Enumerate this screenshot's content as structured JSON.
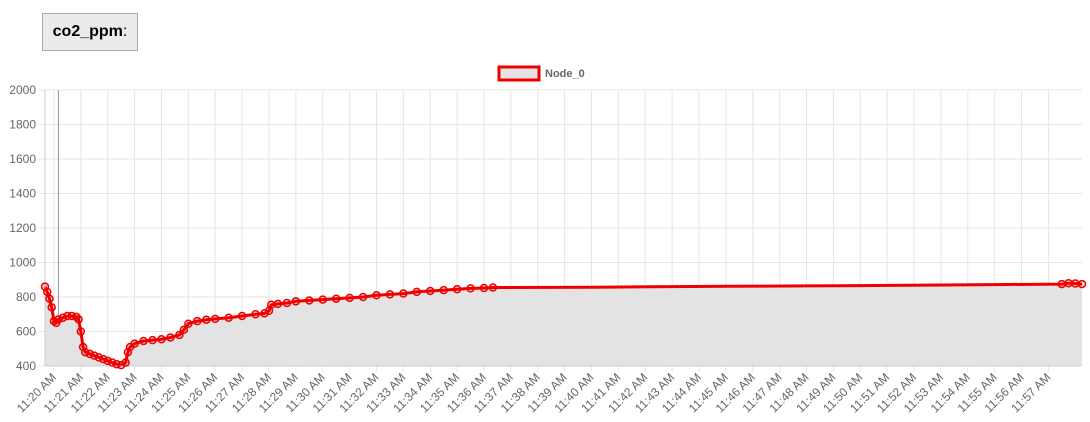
{
  "header": {
    "metric": "co2_ppm",
    "colon": ":"
  },
  "colors": {
    "line": "#ee0000",
    "fill": "#e3e3e3",
    "grid": "#e6e6e6",
    "text": "#666666"
  },
  "chart_data": {
    "type": "area",
    "title": "",
    "xlabel": "",
    "ylabel": "",
    "ylim": [
      400,
      2000
    ],
    "yticks": [
      400,
      600,
      800,
      1000,
      1200,
      1400,
      1600,
      1800,
      2000
    ],
    "legend": {
      "placement": "top-center",
      "entries": [
        "Node_0"
      ]
    },
    "grid": true,
    "x_tick_labels": [
      "11:20 AM",
      "11:21 AM",
      "11:22 AM",
      "11:23 AM",
      "11:24 AM",
      "11:25 AM",
      "11:26 AM",
      "11:27 AM",
      "11:28 AM",
      "11:29 AM",
      "11:30 AM",
      "11:31 AM",
      "11:32 AM",
      "11:33 AM",
      "11:34 AM",
      "11:35 AM",
      "11:36 AM",
      "11:37 AM",
      "11:38 AM",
      "11:39 AM",
      "11:40 AM",
      "11:41 AM",
      "11:42 AM",
      "11:43 AM",
      "11:44 AM",
      "11:45 AM",
      "11:46 AM",
      "11:47 AM",
      "11:48 AM",
      "11:49 AM",
      "11:50 AM",
      "11:51 AM",
      "11:52 AM",
      "11:53 AM",
      "11:54 AM",
      "11:55 AM",
      "11:56 AM",
      "11:57 AM"
    ],
    "x_range": [
      "11:19:40 AM",
      "11:58:15 AM"
    ],
    "series": [
      {
        "name": "Node_0",
        "points": [
          {
            "x": "11:19:40",
            "y": 860
          },
          {
            "x": "11:19:45",
            "y": 830
          },
          {
            "x": "11:19:50",
            "y": 790
          },
          {
            "x": "11:19:55",
            "y": 740
          },
          {
            "x": "11:20:00",
            "y": 660
          },
          {
            "x": "11:20:05",
            "y": 650
          },
          {
            "x": "11:20:10",
            "y": 670
          },
          {
            "x": "11:20:20",
            "y": 680
          },
          {
            "x": "11:20:30",
            "y": 690
          },
          {
            "x": "11:20:40",
            "y": 690
          },
          {
            "x": "11:20:50",
            "y": 685
          },
          {
            "x": "11:20:55",
            "y": 670
          },
          {
            "x": "11:21:00",
            "y": 600
          },
          {
            "x": "11:21:05",
            "y": 510
          },
          {
            "x": "11:21:10",
            "y": 480
          },
          {
            "x": "11:21:20",
            "y": 470
          },
          {
            "x": "11:21:30",
            "y": 460
          },
          {
            "x": "11:21:40",
            "y": 450
          },
          {
            "x": "11:21:50",
            "y": 440
          },
          {
            "x": "11:22:00",
            "y": 430
          },
          {
            "x": "11:22:10",
            "y": 420
          },
          {
            "x": "11:22:20",
            "y": 410
          },
          {
            "x": "11:22:30",
            "y": 405
          },
          {
            "x": "11:22:40",
            "y": 420
          },
          {
            "x": "11:22:45",
            "y": 480
          },
          {
            "x": "11:22:50",
            "y": 510
          },
          {
            "x": "11:23:00",
            "y": 530
          },
          {
            "x": "11:23:20",
            "y": 545
          },
          {
            "x": "11:23:40",
            "y": 550
          },
          {
            "x": "11:24:00",
            "y": 555
          },
          {
            "x": "11:24:20",
            "y": 565
          },
          {
            "x": "11:24:40",
            "y": 580
          },
          {
            "x": "11:24:50",
            "y": 610
          },
          {
            "x": "11:25:00",
            "y": 645
          },
          {
            "x": "11:25:20",
            "y": 660
          },
          {
            "x": "11:25:40",
            "y": 668
          },
          {
            "x": "11:26:00",
            "y": 673
          },
          {
            "x": "11:26:30",
            "y": 680
          },
          {
            "x": "11:27:00",
            "y": 690
          },
          {
            "x": "11:27:30",
            "y": 700
          },
          {
            "x": "11:27:50",
            "y": 705
          },
          {
            "x": "11:28:00",
            "y": 720
          },
          {
            "x": "11:28:05",
            "y": 755
          },
          {
            "x": "11:28:20",
            "y": 760
          },
          {
            "x": "11:28:40",
            "y": 765
          },
          {
            "x": "11:29:00",
            "y": 775
          },
          {
            "x": "11:29:30",
            "y": 780
          },
          {
            "x": "11:30:00",
            "y": 785
          },
          {
            "x": "11:30:30",
            "y": 790
          },
          {
            "x": "11:31:00",
            "y": 795
          },
          {
            "x": "11:31:30",
            "y": 800
          },
          {
            "x": "11:32:00",
            "y": 810
          },
          {
            "x": "11:32:30",
            "y": 815
          },
          {
            "x": "11:33:00",
            "y": 820
          },
          {
            "x": "11:33:30",
            "y": 830
          },
          {
            "x": "11:34:00",
            "y": 835
          },
          {
            "x": "11:34:30",
            "y": 840
          },
          {
            "x": "11:35:00",
            "y": 845
          },
          {
            "x": "11:35:30",
            "y": 850
          },
          {
            "x": "11:36:00",
            "y": 852
          },
          {
            "x": "11:36:20",
            "y": 855
          },
          {
            "x": "11:40:00",
            "y": 857
          },
          {
            "x": "11:45:00",
            "y": 862
          },
          {
            "x": "11:50:00",
            "y": 866
          },
          {
            "x": "11:55:00",
            "y": 872
          },
          {
            "x": "11:57:30",
            "y": 875
          },
          {
            "x": "11:57:45",
            "y": 880
          },
          {
            "x": "11:58:00",
            "y": 878
          },
          {
            "x": "11:58:15",
            "y": 875
          }
        ]
      }
    ]
  }
}
